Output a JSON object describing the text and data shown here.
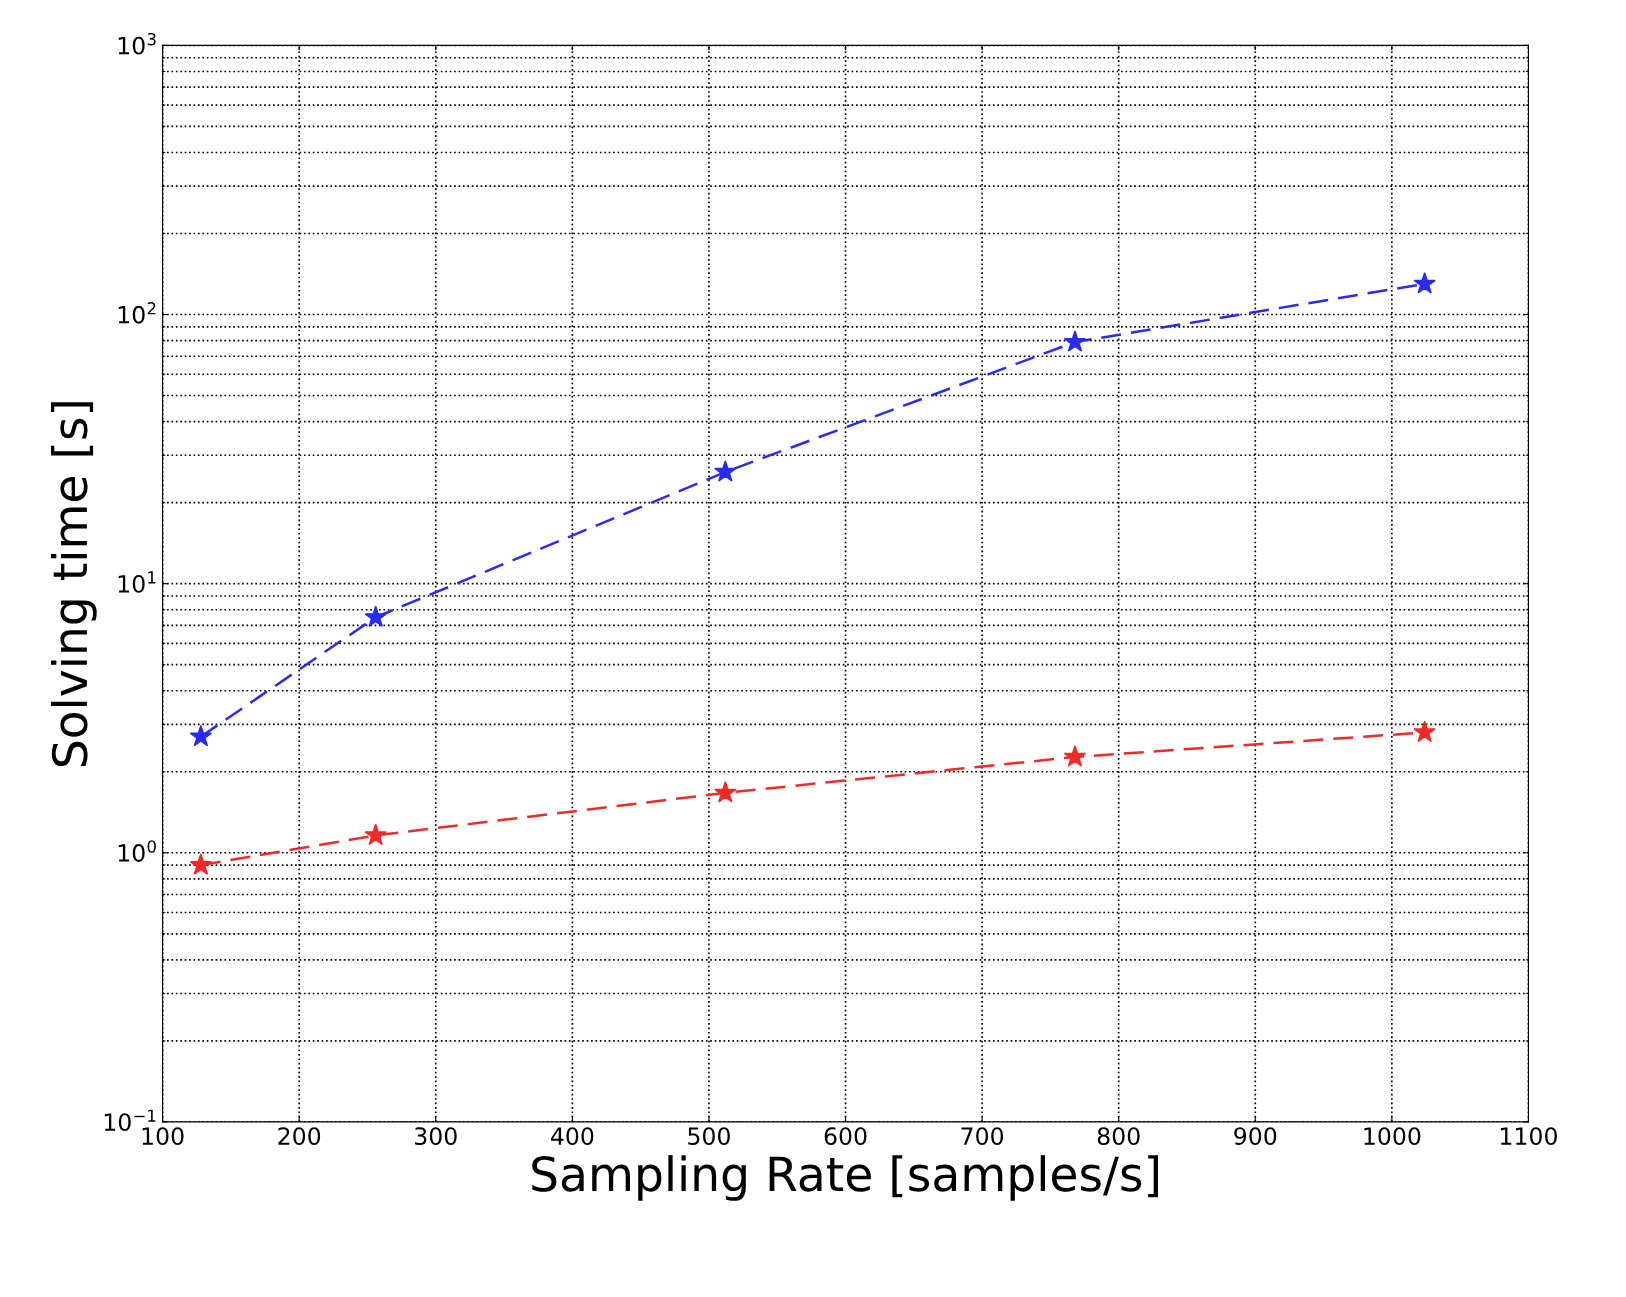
{
  "chart_data": {
    "type": "line",
    "xlabel": "Sampling Rate [samples/s]",
    "ylabel": "Solving time [s]",
    "x": [
      128,
      256,
      512,
      768,
      1024
    ],
    "series": [
      {
        "color": "#2a2af5",
        "values": [
          2.7,
          7.5,
          26,
          79,
          130
        ]
      },
      {
        "color": "#f02a2a",
        "values": [
          0.9,
          1.16,
          1.67,
          2.27,
          2.8
        ]
      }
    ],
    "log": "y",
    "xlim": [
      100,
      1100
    ],
    "ylim": [
      0.1,
      1000
    ],
    "xticks": [
      100,
      200,
      300,
      400,
      500,
      600,
      700,
      800,
      900,
      1000,
      1100
    ],
    "yticks": [
      {
        "value": 0.1,
        "label": "10$^{−1}$"
      },
      {
        "value": 1,
        "label": "10$^{0}$"
      },
      {
        "value": 10,
        "label": "10$^{1}$"
      },
      {
        "value": 100,
        "label": "10$^{2}$"
      },
      {
        "value": 1000,
        "label": "10$^{3}$"
      }
    ],
    "grid": true,
    "marker": "star",
    "line_style": "dashed"
  }
}
